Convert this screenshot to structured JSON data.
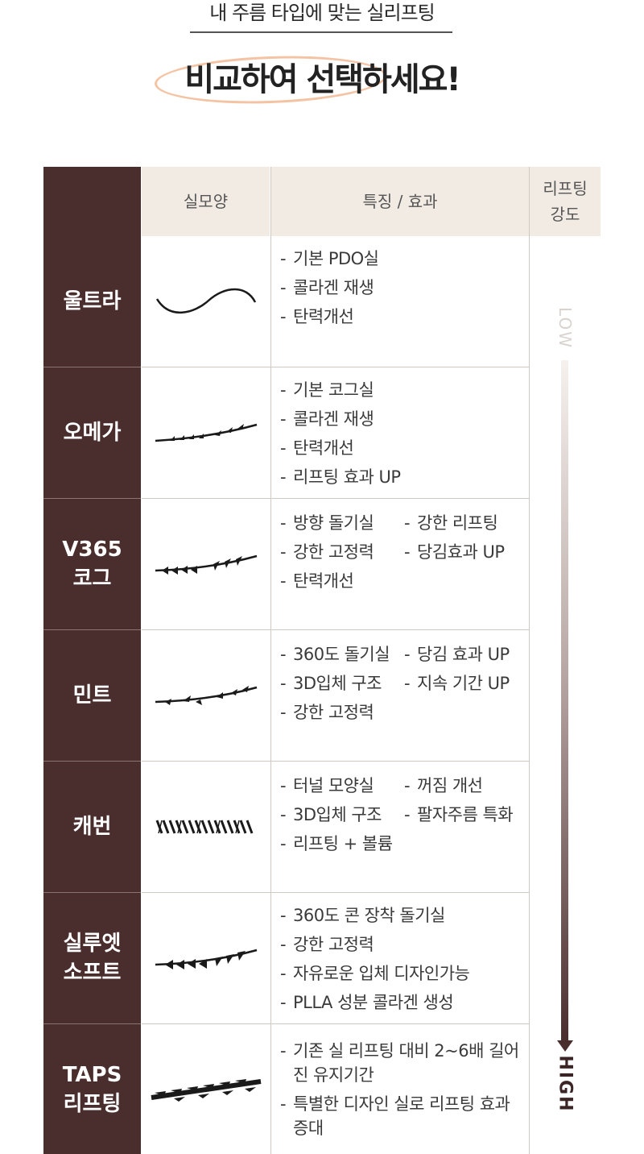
{
  "header": {
    "subtitle": "내 주름 타입에 맞는 실리프팅",
    "title": "비교하여 선택하세요!"
  },
  "table": {
    "headers": {
      "shape": "실모양",
      "features": "특징 / 효과",
      "intensity": "리프팅\n강도"
    },
    "rows": [
      {
        "name": "울트라",
        "features": [
          "기본 PDO실",
          "콜라겐 재생",
          "탄력개선"
        ]
      },
      {
        "name": "오메가",
        "features": [
          "기본 코그실",
          "콜라겐 재생",
          "탄력개선",
          "리프팅 효과 UP"
        ]
      },
      {
        "name": "V365\n코그",
        "features": [
          "방향 돌기실",
          "강한 리프팅",
          "강한 고정력",
          "당김효과 UP",
          "탄력개선"
        ]
      },
      {
        "name": "민트",
        "features": [
          "360도 돌기실",
          "당김 효과 UP",
          "3D입체 구조",
          "지속 기간 UP",
          "강한 고정력"
        ]
      },
      {
        "name": "캐번",
        "features": [
          "터널 모양실",
          "꺼짐 개선",
          "3D입체 구조",
          "팔자주름 특화",
          "리프팅 + 볼륨"
        ]
      },
      {
        "name": "실루엣\n소프트",
        "features": [
          "360도 콘 장착 돌기실",
          "강한 고정력",
          "자유로운 입체 디자인가능",
          "PLLA 성분 콜라겐 생성"
        ]
      },
      {
        "name": "TAPS\n리프팅",
        "features": [
          "기존 실 리프팅 대비 2~6배 길어진 유지기간",
          "특별한 디자인 실로 리프팅 효과 증대"
        ]
      }
    ]
  },
  "scale": {
    "low": "LOW",
    "high": "HIGH"
  },
  "colors": {
    "dark": "#4a2e2e",
    "header_bg": "#f1ebe3",
    "accent_oval": "#f4c3a4"
  }
}
